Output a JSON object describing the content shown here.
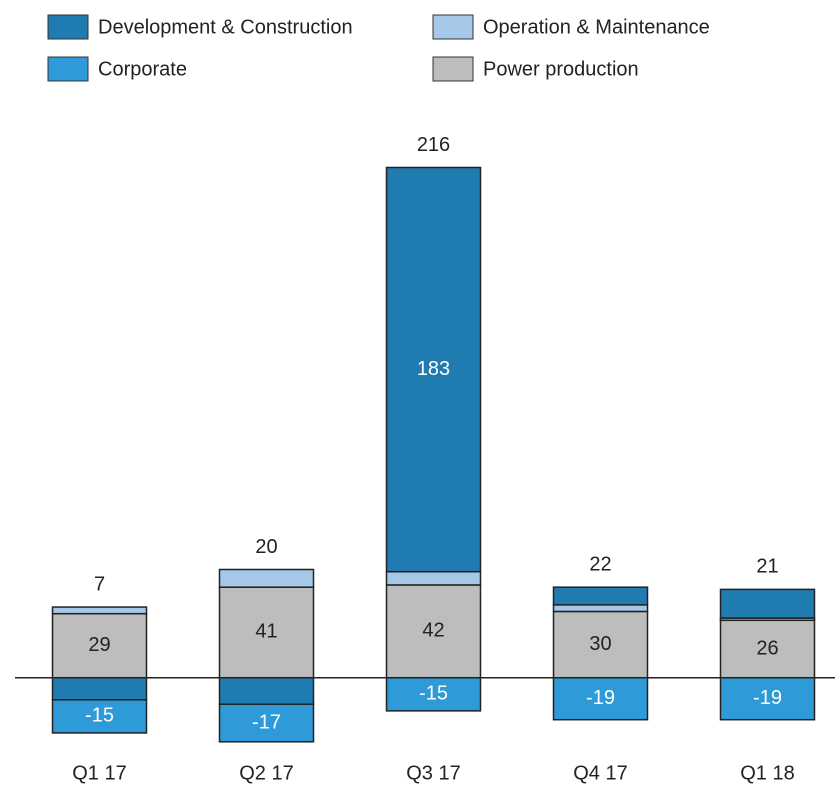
{
  "chart_data": {
    "type": "stacked_bar",
    "categories": [
      "Q1 17",
      "Q2 17",
      "Q3 17",
      "Q4 17",
      "Q1 18"
    ],
    "series": [
      {
        "name": "Development & Construction",
        "color": "#1f7bb0",
        "values": [
          -10,
          -12,
          183,
          8,
          13
        ]
      },
      {
        "name": "Operation & Maintenance",
        "color": "#a6c8e8",
        "values": [
          3,
          8,
          6,
          3,
          1
        ]
      },
      {
        "name": "Corporate",
        "color": "#2f9ad8",
        "values": [
          -15,
          -17,
          -15,
          -19,
          -19
        ]
      },
      {
        "name": "Power production",
        "color": "#bdbdbd",
        "values": [
          29,
          41,
          42,
          30,
          26
        ]
      }
    ],
    "totals": [
      7,
      20,
      216,
      22,
      21
    ],
    "ylim": [
      -30,
      250
    ]
  }
}
